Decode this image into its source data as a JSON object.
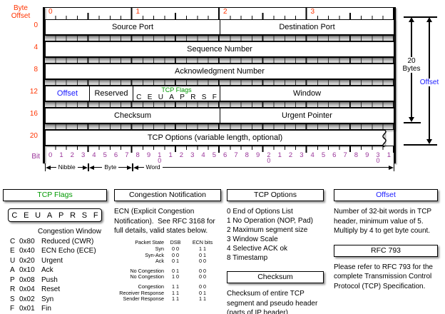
{
  "colors": {
    "red": "#ff3300",
    "green": "#009900",
    "blue": "#1a1aff",
    "purple": "#993399"
  },
  "header_diagram": {
    "byte_offset_label": "Byte Offset",
    "bit_label": "Bit",
    "byte_ruler_numbers": [
      "0",
      "1",
      "2",
      "3"
    ],
    "rows": [
      {
        "offset": "0",
        "fields": [
          {
            "label": "Source Port",
            "bits": 16
          },
          {
            "label": "Destination Port",
            "bits": 16
          }
        ]
      },
      {
        "offset": "4",
        "fields": [
          {
            "label": "Sequence Number",
            "bits": 32
          }
        ]
      },
      {
        "offset": "8",
        "fields": [
          {
            "label": "Acknowledgment Number",
            "bits": 32
          }
        ]
      },
      {
        "offset": "12",
        "fields": [
          {
            "label": "Offset",
            "bits": 4,
            "label_color": "blue"
          },
          {
            "label": "Reserved",
            "bits": 4
          },
          {
            "label": "TCP Flags",
            "bits": 8,
            "label_color": "green",
            "sublabels": [
              "C",
              "E",
              "U",
              "A",
              "P",
              "R",
              "S",
              "F"
            ]
          },
          {
            "label": "Window",
            "bits": 16
          }
        ]
      },
      {
        "offset": "16",
        "fields": [
          {
            "label": "Checksum",
            "bits": 16
          },
          {
            "label": "Urgent Pointer",
            "bits": 16
          }
        ]
      },
      {
        "offset": "20",
        "torn": true,
        "fields": [
          {
            "label": "TCP Options (variable length, optional)",
            "bits": 32
          }
        ]
      }
    ],
    "bit_numbers": [
      "0",
      "1",
      "2",
      "3",
      "4",
      "5",
      "6",
      "7",
      "8",
      "9",
      "10",
      "1",
      "2",
      "3",
      "4",
      "5",
      "6",
      "7",
      "8",
      "9",
      "20",
      "1",
      "2",
      "3",
      "4",
      "5",
      "6",
      "7",
      "8",
      "9",
      "30",
      "1"
    ],
    "bit_units": [
      {
        "label": "Nibble",
        "from": 0,
        "to": 4
      },
      {
        "label": "Byte",
        "from": 4,
        "to": 8
      },
      {
        "label": "Word",
        "from": 8,
        "to": 32,
        "align": "left"
      }
    ],
    "right_annotation": {
      "bytes_label": "20 Bytes",
      "offset_label": "Offset"
    }
  },
  "panels": {
    "tcp_flags": {
      "title": "TCP Flags",
      "letters": [
        "C",
        "E",
        "U",
        "A",
        "P",
        "R",
        "S",
        "F"
      ],
      "pre_line": "Congestion Window",
      "flags": [
        {
          "key": "C",
          "hex": "0x80",
          "desc": "Reduced (CWR)"
        },
        {
          "key": "E",
          "hex": "0x40",
          "desc": "ECN Echo (ECE)"
        },
        {
          "key": "U",
          "hex": "0x20",
          "desc": "Urgent"
        },
        {
          "key": "A",
          "hex": "0x10",
          "desc": "Ack"
        },
        {
          "key": "P",
          "hex": "0x08",
          "desc": "Push"
        },
        {
          "key": "R",
          "hex": "0x04",
          "desc": "Reset"
        },
        {
          "key": "S",
          "hex": "0x02",
          "desc": "Syn"
        },
        {
          "key": "F",
          "hex": "0x01",
          "desc": "Fin"
        }
      ]
    },
    "congestion": {
      "title": "Congestion Notification",
      "body": "ECN (Explicit Congestion Notification).  See RFC 3168 for full details, valid states below.",
      "table": {
        "headers": [
          "Packet State",
          "DSB",
          "ECN bits"
        ],
        "rows": [
          [
            "Syn",
            "0 0",
            "1 1"
          ],
          [
            "Syn-Ack",
            "0 0",
            "0 1"
          ],
          [
            "Ack",
            "0 1",
            "0 0"
          ],
          null,
          [
            "No Congestion",
            "0 1",
            "0 0"
          ],
          [
            "No Congestion",
            "1 0",
            "0 0"
          ],
          null,
          [
            "Congestion",
            "1 1",
            "0 0"
          ],
          [
            "Receiver Response",
            "1 1",
            "0 1"
          ],
          [
            "Sender Response",
            "1 1",
            "1 1"
          ]
        ]
      }
    },
    "tcp_options": {
      "title": "TCP Options",
      "items": [
        "0 End of Options List",
        "1 No Operation (NOP, Pad)",
        "2 Maximum segment size",
        "3 Window Scale",
        "4 Selective ACK ok",
        "8 Timestamp"
      ]
    },
    "checksum": {
      "title": "Checksum",
      "body": "Checksum of entire TCP segment and pseudo header (parts of IP header)"
    },
    "offset": {
      "title": "Offset",
      "body": "Number of 32-bit words in TCP header, minimum value of 5.  Multiply by 4 to get byte count."
    },
    "rfc": {
      "title": "RFC 793",
      "body": "Please refer to RFC 793 for the complete Transmission Control Protocol (TCP) Specification."
    }
  }
}
